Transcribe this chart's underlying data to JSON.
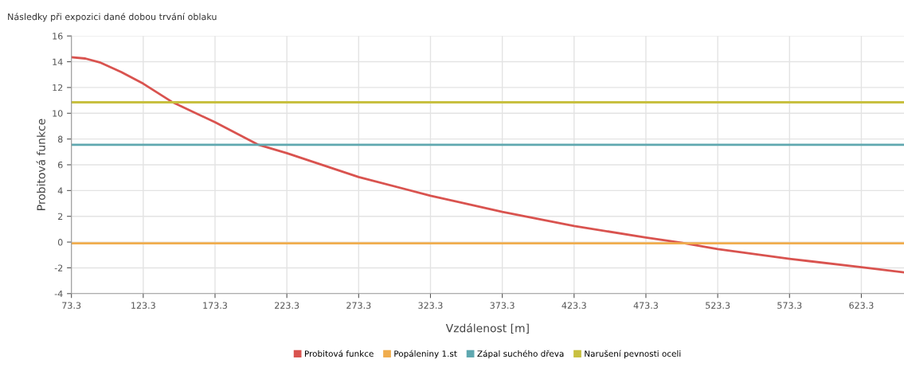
{
  "chart_data": {
    "type": "line",
    "title": "Následky při expozici dané dobou trvání oblaku",
    "xlabel": "Vzdálenost [m]",
    "ylabel": "Probitová funkce",
    "xlim": [
      73.3,
      653
    ],
    "xticks": [
      73.3,
      123.3,
      173.3,
      223.3,
      273.3,
      323.3,
      373.3,
      423.3,
      473.3,
      523.3,
      573.3,
      623.3
    ],
    "ylim": [
      -4,
      16
    ],
    "yticks": [
      -4,
      -2,
      0,
      2,
      4,
      6,
      8,
      10,
      12,
      14,
      16
    ],
    "grid": true,
    "legend": "bottom",
    "marker": "none",
    "line_style": "solid",
    "series": [
      {
        "name": "Probitová funkce",
        "color": "#d9534f",
        "x": [
          73.3,
          83,
          93,
          108,
          123.3,
          143,
          173.3,
          203.6,
          223.3,
          273.3,
          323.3,
          373.3,
          423.3,
          473.3,
          498,
          523.3,
          573.3,
          623.3,
          653
        ],
        "values": [
          14.35,
          14.25,
          13.95,
          13.2,
          12.3,
          10.9,
          9.3,
          7.55,
          6.9,
          5.05,
          3.6,
          2.35,
          1.25,
          0.35,
          -0.05,
          -0.55,
          -1.3,
          -1.95,
          -2.35
        ]
      },
      {
        "name": "Popáleniny 1.st",
        "color": "#f0ad4e",
        "x": [
          73.3,
          653
        ],
        "values": [
          -0.1,
          -0.1
        ]
      },
      {
        "name": "Zápal suchého dřeva",
        "color": "#5fa8b0",
        "x": [
          73.3,
          653
        ],
        "values": [
          7.55,
          7.55
        ]
      },
      {
        "name": "Narušení pevnosti oceli",
        "color": "#c8c040",
        "x": [
          73.3,
          653
        ],
        "values": [
          10.85,
          10.85
        ]
      }
    ]
  }
}
